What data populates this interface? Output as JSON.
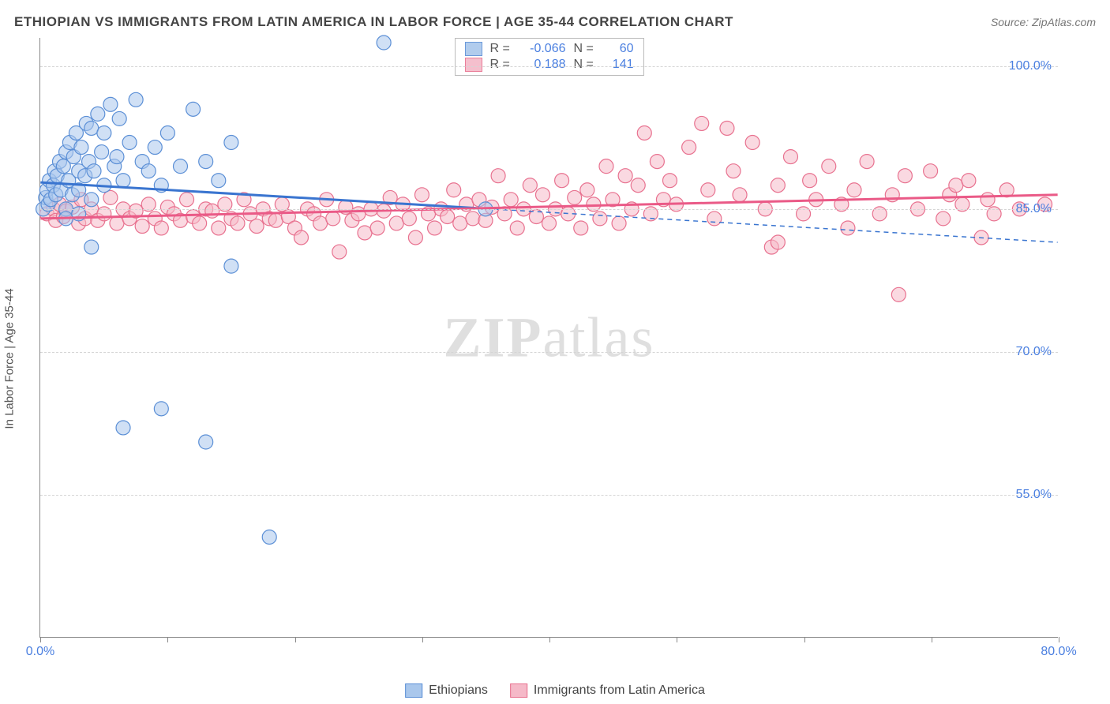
{
  "title": "ETHIOPIAN VS IMMIGRANTS FROM LATIN AMERICA IN LABOR FORCE | AGE 35-44 CORRELATION CHART",
  "source": "Source: ZipAtlas.com",
  "y_axis_label": "In Labor Force | Age 35-44",
  "watermark": {
    "bold": "ZIP",
    "rest": "atlas"
  },
  "chart": {
    "type": "scatter-with-trendlines",
    "background_color": "#ffffff",
    "grid_color": "#d5d5d5",
    "axis_color": "#888888",
    "tick_color": "#4a7fe0",
    "xlim": [
      0,
      80
    ],
    "ylim": [
      40,
      103
    ],
    "x_ticks": [
      0,
      10,
      20,
      30,
      40,
      50,
      60,
      70,
      80
    ],
    "x_tick_labels": {
      "0": "0.0%",
      "80": "80.0%"
    },
    "y_ticks": [
      55,
      70,
      85,
      100
    ],
    "y_tick_labels": {
      "55": "55.0%",
      "70": "70.0%",
      "85": "85.0%",
      "100": "100.0%"
    },
    "marker_radius": 9,
    "marker_stroke_width": 1.2,
    "trend_line_width": 3,
    "series": [
      {
        "name": "Ethiopians",
        "legend_label": "Ethiopians",
        "fill": "#a9c7ec",
        "stroke": "#5b8fd6",
        "fill_opacity": 0.55,
        "trend_color": "#3a75d0",
        "trend_solid_xmax": 35,
        "R": "-0.066",
        "N": "60",
        "trend": {
          "x1": 0,
          "y1": 87.8,
          "x2": 80,
          "y2": 81.5
        },
        "points": [
          [
            0.2,
            85.0
          ],
          [
            0.4,
            86.2
          ],
          [
            0.5,
            87.0
          ],
          [
            0.6,
            85.5
          ],
          [
            0.7,
            88.0
          ],
          [
            0.8,
            86.0
          ],
          [
            1.0,
            87.5
          ],
          [
            1.1,
            89.0
          ],
          [
            1.2,
            86.5
          ],
          [
            1.3,
            88.5
          ],
          [
            1.5,
            90.0
          ],
          [
            1.6,
            87.0
          ],
          [
            1.8,
            89.5
          ],
          [
            2.0,
            85.0
          ],
          [
            2.0,
            91.0
          ],
          [
            2.2,
            88.0
          ],
          [
            2.3,
            92.0
          ],
          [
            2.5,
            86.5
          ],
          [
            2.6,
            90.5
          ],
          [
            2.8,
            93.0
          ],
          [
            3.0,
            87.0
          ],
          [
            3.0,
            89.0
          ],
          [
            3.2,
            91.5
          ],
          [
            3.5,
            88.5
          ],
          [
            3.6,
            94.0
          ],
          [
            3.8,
            90.0
          ],
          [
            4.0,
            86.0
          ],
          [
            4.0,
            93.5
          ],
          [
            4.2,
            89.0
          ],
          [
            4.5,
            95.0
          ],
          [
            4.8,
            91.0
          ],
          [
            5.0,
            87.5
          ],
          [
            5.0,
            93.0
          ],
          [
            5.5,
            96.0
          ],
          [
            5.8,
            89.5
          ],
          [
            6.0,
            90.5
          ],
          [
            6.2,
            94.5
          ],
          [
            6.5,
            88.0
          ],
          [
            7.0,
            92.0
          ],
          [
            7.5,
            96.5
          ],
          [
            8.0,
            90.0
          ],
          [
            8.5,
            89.0
          ],
          [
            9.0,
            91.5
          ],
          [
            9.5,
            87.5
          ],
          [
            10.0,
            93.0
          ],
          [
            11.0,
            89.5
          ],
          [
            12.0,
            95.5
          ],
          [
            13.0,
            90.0
          ],
          [
            14.0,
            88.0
          ],
          [
            15.0,
            92.0
          ],
          [
            4.0,
            81.0
          ],
          [
            6.5,
            62.0
          ],
          [
            9.5,
            64.0
          ],
          [
            13.0,
            60.5
          ],
          [
            15.0,
            79.0
          ],
          [
            18.0,
            50.5
          ],
          [
            27.0,
            102.5
          ],
          [
            35.0,
            85.0
          ],
          [
            2.0,
            84.0
          ],
          [
            3.0,
            84.5
          ]
        ]
      },
      {
        "name": "Immigrants from Latin America",
        "legend_label": "Immigrants from Latin America",
        "fill": "#f5b9c8",
        "stroke": "#e8718f",
        "fill_opacity": 0.55,
        "trend_color": "#ea5a87",
        "trend_solid_xmax": 80,
        "R": "0.188",
        "N": "141",
        "trend": {
          "x1": 0,
          "y1": 84.0,
          "x2": 80,
          "y2": 86.5
        },
        "points": [
          [
            0.5,
            84.5
          ],
          [
            1.0,
            85.0
          ],
          [
            1.2,
            83.8
          ],
          [
            1.5,
            85.5
          ],
          [
            1.8,
            84.2
          ],
          [
            2.0,
            84.8
          ],
          [
            2.5,
            85.2
          ],
          [
            3.0,
            83.5
          ],
          [
            3.2,
            86.0
          ],
          [
            3.5,
            84.0
          ],
          [
            4.0,
            85.0
          ],
          [
            4.5,
            83.8
          ],
          [
            5.0,
            84.5
          ],
          [
            5.5,
            86.2
          ],
          [
            6.0,
            83.5
          ],
          [
            6.5,
            85.0
          ],
          [
            7.0,
            84.0
          ],
          [
            7.5,
            84.8
          ],
          [
            8.0,
            83.2
          ],
          [
            8.5,
            85.5
          ],
          [
            9.0,
            84.0
          ],
          [
            9.5,
            83.0
          ],
          [
            10.0,
            85.2
          ],
          [
            10.5,
            84.5
          ],
          [
            11.0,
            83.8
          ],
          [
            11.5,
            86.0
          ],
          [
            12.0,
            84.2
          ],
          [
            12.5,
            83.5
          ],
          [
            13.0,
            85.0
          ],
          [
            13.5,
            84.8
          ],
          [
            14.0,
            83.0
          ],
          [
            14.5,
            85.5
          ],
          [
            15.0,
            84.0
          ],
          [
            15.5,
            83.5
          ],
          [
            16.0,
            86.0
          ],
          [
            16.5,
            84.5
          ],
          [
            17.0,
            83.2
          ],
          [
            17.5,
            85.0
          ],
          [
            18.0,
            84.0
          ],
          [
            18.5,
            83.8
          ],
          [
            19.0,
            85.5
          ],
          [
            19.5,
            84.2
          ],
          [
            20.0,
            83.0
          ],
          [
            20.5,
            82.0
          ],
          [
            21.0,
            85.0
          ],
          [
            21.5,
            84.5
          ],
          [
            22.0,
            83.5
          ],
          [
            22.5,
            86.0
          ],
          [
            23.0,
            84.0
          ],
          [
            23.5,
            80.5
          ],
          [
            24.0,
            85.2
          ],
          [
            24.5,
            83.8
          ],
          [
            25.0,
            84.5
          ],
          [
            25.5,
            82.5
          ],
          [
            26.0,
            85.0
          ],
          [
            26.5,
            83.0
          ],
          [
            27.0,
            84.8
          ],
          [
            27.5,
            86.2
          ],
          [
            28.0,
            83.5
          ],
          [
            28.5,
            85.5
          ],
          [
            29.0,
            84.0
          ],
          [
            29.5,
            82.0
          ],
          [
            30.0,
            86.5
          ],
          [
            30.5,
            84.5
          ],
          [
            31.0,
            83.0
          ],
          [
            31.5,
            85.0
          ],
          [
            32.0,
            84.2
          ],
          [
            32.5,
            87.0
          ],
          [
            33.0,
            83.5
          ],
          [
            33.5,
            85.5
          ],
          [
            34.0,
            84.0
          ],
          [
            34.5,
            86.0
          ],
          [
            35.0,
            83.8
          ],
          [
            35.5,
            85.2
          ],
          [
            36.0,
            88.5
          ],
          [
            36.5,
            84.5
          ],
          [
            37.0,
            86.0
          ],
          [
            37.5,
            83.0
          ],
          [
            38.0,
            85.0
          ],
          [
            38.5,
            87.5
          ],
          [
            39.0,
            84.2
          ],
          [
            39.5,
            86.5
          ],
          [
            40.0,
            83.5
          ],
          [
            40.5,
            85.0
          ],
          [
            41.0,
            88.0
          ],
          [
            41.5,
            84.5
          ],
          [
            42.0,
            86.2
          ],
          [
            42.5,
            83.0
          ],
          [
            43.0,
            87.0
          ],
          [
            43.5,
            85.5
          ],
          [
            44.0,
            84.0
          ],
          [
            44.5,
            89.5
          ],
          [
            45.0,
            86.0
          ],
          [
            45.5,
            83.5
          ],
          [
            46.0,
            88.5
          ],
          [
            46.5,
            85.0
          ],
          [
            47.0,
            87.5
          ],
          [
            47.5,
            93.0
          ],
          [
            48.0,
            84.5
          ],
          [
            48.5,
            90.0
          ],
          [
            49.0,
            86.0
          ],
          [
            49.5,
            88.0
          ],
          [
            50.0,
            85.5
          ],
          [
            51.0,
            91.5
          ],
          [
            52.0,
            94.0
          ],
          [
            52.5,
            87.0
          ],
          [
            53.0,
            84.0
          ],
          [
            54.0,
            93.5
          ],
          [
            54.5,
            89.0
          ],
          [
            55.0,
            86.5
          ],
          [
            56.0,
            92.0
          ],
          [
            57.0,
            85.0
          ],
          [
            57.5,
            81.0
          ],
          [
            58.0,
            87.5
          ],
          [
            59.0,
            90.5
          ],
          [
            60.0,
            84.5
          ],
          [
            60.5,
            88.0
          ],
          [
            61.0,
            86.0
          ],
          [
            62.0,
            89.5
          ],
          [
            63.0,
            85.5
          ],
          [
            63.5,
            83.0
          ],
          [
            64.0,
            87.0
          ],
          [
            65.0,
            90.0
          ],
          [
            66.0,
            84.5
          ],
          [
            67.0,
            86.5
          ],
          [
            67.5,
            76.0
          ],
          [
            68.0,
            88.5
          ],
          [
            69.0,
            85.0
          ],
          [
            70.0,
            89.0
          ],
          [
            71.0,
            84.0
          ],
          [
            71.5,
            86.5
          ],
          [
            72.0,
            87.5
          ],
          [
            72.5,
            85.5
          ],
          [
            73.0,
            88.0
          ],
          [
            74.0,
            82.0
          ],
          [
            74.5,
            86.0
          ],
          [
            75.0,
            84.5
          ],
          [
            76.0,
            87.0
          ],
          [
            77.0,
            85.0
          ],
          [
            79.0,
            85.5
          ],
          [
            58.0,
            81.5
          ]
        ]
      }
    ]
  },
  "stats_box_labels": {
    "R": "R =",
    "N": "N ="
  }
}
